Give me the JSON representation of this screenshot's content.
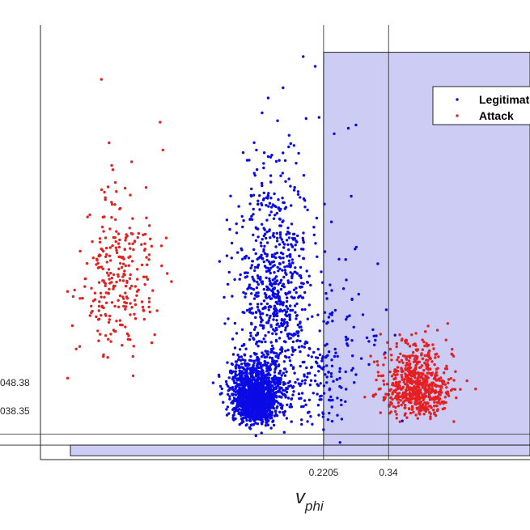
{
  "chart_data": {
    "type": "scatter",
    "title": "",
    "xlabel": "v",
    "xlabel_sub": "phi",
    "ylabel": "",
    "x_ticks": [
      {
        "label": "0.2205",
        "value": 0.2205
      },
      {
        "label": "0.34",
        "value": 0.34
      }
    ],
    "y_ticks": [
      {
        "label": "048.38",
        "value": 48.38
      },
      {
        "label": "038.35",
        "value": 38.35
      }
    ],
    "xlim": [
      -0.3,
      0.6
    ],
    "ylim": [
      25,
      425
    ],
    "grid": false,
    "legend_position": "top-right",
    "threshold_lines": {
      "x": [
        0.2205,
        0.34
      ],
      "y": [
        48.38,
        38.35
      ]
    },
    "shaded_regions": [
      {
        "x": [
          0.2205,
          0.6
        ],
        "y": [
          38.35,
          400
        ],
        "color": "#ccccf5"
      },
      {
        "x": [
          -0.245,
          0.6
        ],
        "y": [
          28.5,
          38.35
        ],
        "color": "#ccccf5"
      }
    ],
    "series": [
      {
        "name": "Legitimate",
        "color": "#0a0ae6",
        "clusters": [
          {
            "cx": 0.096,
            "cy": 72,
            "sx": 0.022,
            "sy": 22,
            "n": 1500
          },
          {
            "cx": 0.13,
            "cy": 150,
            "sx": 0.035,
            "sy": 75,
            "n": 650
          },
          {
            "cx": 0.2,
            "cy": 80,
            "sx": 0.035,
            "sy": 40,
            "n": 160
          },
          {
            "cx": 0.25,
            "cy": 100,
            "sx": 0.045,
            "sy": 60,
            "n": 60
          }
        ],
        "points": [
          [
            0.183,
            396
          ],
          [
            0.205,
            387
          ],
          [
            0.266,
            330
          ],
          [
            0.28,
            333
          ],
          [
            0.24,
            325
          ],
          [
            0.29,
            118
          ],
          [
            0.265,
            130
          ]
        ]
      },
      {
        "name": "Attack",
        "color": "#e62020",
        "clusters": [
          {
            "cx": -0.16,
            "cy": 165,
            "sx": 0.035,
            "sy": 60,
            "n": 270
          },
          {
            "cx": 0.39,
            "cy": 80,
            "sx": 0.03,
            "sy": 25,
            "n": 650
          }
        ],
        "points": [
          [
            -0.188,
            375
          ],
          [
            -0.075,
            310
          ],
          [
            -0.13,
            120
          ],
          [
            -0.09,
            140
          ],
          [
            -0.25,
            100
          ],
          [
            0.46,
            60
          ],
          [
            0.5,
            90
          ]
        ]
      }
    ]
  }
}
